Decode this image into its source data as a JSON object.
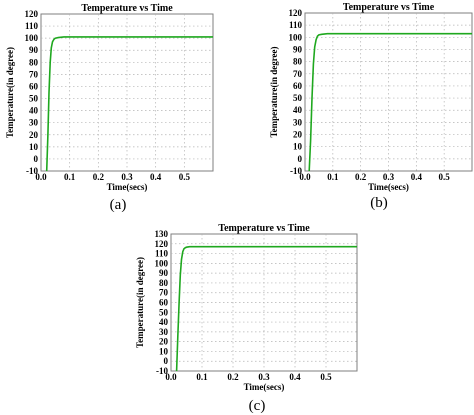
{
  "chart_data": [
    {
      "type": "line",
      "caption": "(a)",
      "title": "Temperature vs Time",
      "xlabel": "Time(secs)",
      "ylabel": "Temperature(in degree)",
      "xlim": [
        0,
        0.6
      ],
      "ylim": [
        -10,
        120
      ],
      "xticks": [
        0.0,
        0.1,
        0.2,
        0.3,
        0.4,
        0.5
      ],
      "xtick_labels": [
        "0.0",
        "0.1",
        "0.2",
        "0.3",
        "0.4",
        "0.5"
      ],
      "yticks": [
        -10,
        0,
        10,
        20,
        30,
        40,
        50,
        60,
        70,
        80,
        90,
        100,
        110,
        120
      ],
      "ytick_labels": [
        "-10",
        "0",
        "10",
        "20",
        "30",
        "40",
        "50",
        "60",
        "70",
        "80",
        "90",
        "100",
        "110",
        "120"
      ],
      "grid": true,
      "series": [
        {
          "color": "#1fa81f",
          "x": [
            0.02,
            0.024,
            0.028,
            0.032,
            0.036,
            0.04,
            0.045,
            0.05,
            0.06,
            0.08,
            0.1,
            0.2,
            0.3,
            0.4,
            0.5,
            0.6
          ],
          "y": [
            -10,
            20,
            55,
            80,
            92,
            97,
            99,
            100,
            100.5,
            101,
            101,
            101,
            101,
            101,
            101,
            101
          ]
        }
      ]
    },
    {
      "type": "line",
      "caption": "(b)",
      "title": "Temperature vs Time",
      "xlabel": "Time(secs)",
      "ylabel": "Temperature(in degree)",
      "xlim": [
        0,
        0.6
      ],
      "ylim": [
        -10,
        120
      ],
      "xticks": [
        0.0,
        0.1,
        0.2,
        0.3,
        0.4,
        0.5
      ],
      "xtick_labels": [
        "0.0",
        "0.1",
        "0.2",
        "0.3",
        "0.4",
        "0.5"
      ],
      "yticks": [
        -10,
        0,
        10,
        20,
        30,
        40,
        50,
        60,
        70,
        80,
        90,
        100,
        110,
        120
      ],
      "ytick_labels": [
        "-10",
        "0",
        "10",
        "20",
        "30",
        "40",
        "50",
        "60",
        "70",
        "80",
        "90",
        "100",
        "110",
        "120"
      ],
      "grid": true,
      "series": [
        {
          "color": "#1fa81f",
          "x": [
            0.015,
            0.02,
            0.025,
            0.03,
            0.035,
            0.04,
            0.045,
            0.05,
            0.06,
            0.08,
            0.1,
            0.2,
            0.3,
            0.4,
            0.5,
            0.6
          ],
          "y": [
            -10,
            15,
            50,
            78,
            92,
            98,
            101,
            102,
            102.5,
            103,
            103,
            103,
            103,
            103,
            103,
            103
          ]
        }
      ]
    },
    {
      "type": "line",
      "caption": "(c)",
      "title": "Temperature vs Time",
      "xlabel": "Time(secs)",
      "ylabel": "Temperature(in degree)",
      "xlim": [
        0,
        0.6
      ],
      "ylim": [
        -10,
        130
      ],
      "xticks": [
        0.0,
        0.1,
        0.2,
        0.3,
        0.4,
        0.5
      ],
      "xtick_labels": [
        "0.0",
        "0.1",
        "0.2",
        "0.3",
        "0.4",
        "0.5"
      ],
      "yticks": [
        -10,
        0,
        10,
        20,
        30,
        40,
        50,
        60,
        70,
        80,
        90,
        100,
        110,
        120,
        130
      ],
      "ytick_labels": [
        "-10",
        "0",
        "10",
        "20",
        "30",
        "40",
        "50",
        "60",
        "70",
        "80",
        "90",
        "100",
        "110",
        "120",
        "130"
      ],
      "grid": true,
      "series": [
        {
          "color": "#1fa81f",
          "x": [
            0.018,
            0.022,
            0.026,
            0.03,
            0.034,
            0.038,
            0.042,
            0.046,
            0.05,
            0.06,
            0.08,
            0.1,
            0.2,
            0.3,
            0.4,
            0.5,
            0.6
          ],
          "y": [
            -10,
            25,
            60,
            88,
            104,
            112,
            115,
            116,
            116.5,
            117,
            117,
            117,
            117,
            117,
            117,
            117,
            117
          ]
        }
      ]
    }
  ]
}
